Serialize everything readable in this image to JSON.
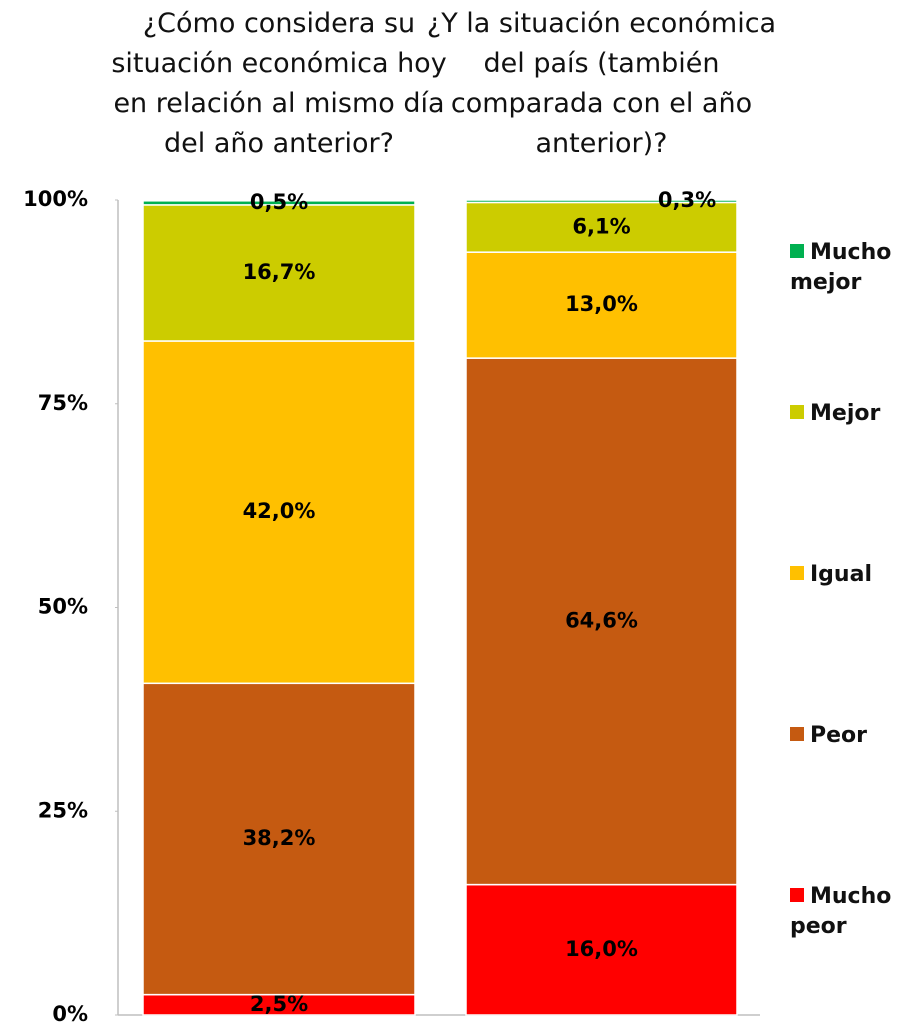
{
  "chart_data": {
    "type": "stacked_bar",
    "categories": [
      "¿Cómo considera su situación económica hoy en relación al mismo día del año anterior?",
      "¿Y la situación económica del país (también comparada con el año anterior)?"
    ],
    "series": [
      {
        "name": "Mucho peor",
        "color": "#ff0000",
        "values": [
          2.5,
          16.0
        ],
        "value_labels": [
          "2,5%",
          "16,0%"
        ]
      },
      {
        "name": "Peor",
        "color": "#c55a11",
        "values": [
          38.2,
          64.6
        ],
        "value_labels": [
          "38,2%",
          "64,6%"
        ]
      },
      {
        "name": "Igual",
        "color": "#ffc000",
        "values": [
          42.0,
          13.0
        ],
        "value_labels": [
          "42,0%",
          "13,0%"
        ]
      },
      {
        "name": "Mejor",
        "color": "#cccc00",
        "values": [
          16.7,
          6.1
        ],
        "value_labels": [
          "16,7%",
          "6,1%"
        ]
      },
      {
        "name": "Mucho mejor",
        "color": "#00b050",
        "values": [
          0.5,
          0.3
        ],
        "value_labels": [
          "0,5%",
          "0,3%"
        ]
      }
    ],
    "ylim": [
      0,
      100
    ],
    "yticks": [
      {
        "value": 0,
        "label": "0%"
      },
      {
        "value": 25,
        "label": "25%"
      },
      {
        "value": 50,
        "label": "50%"
      },
      {
        "value": 75,
        "label": "75%"
      },
      {
        "value": 100,
        "label": "100%"
      }
    ]
  }
}
